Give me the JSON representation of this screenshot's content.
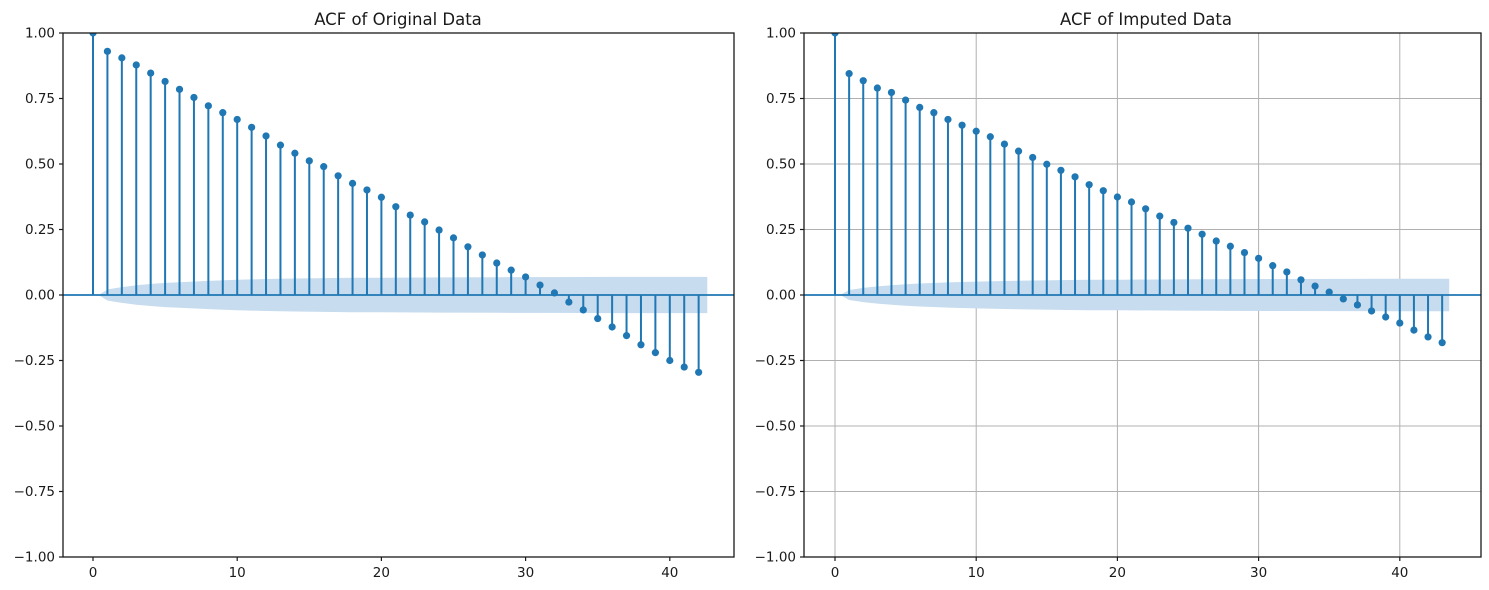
{
  "figure": {
    "background": "#ffffff"
  },
  "chart_data": [
    {
      "type": "stem",
      "title": "ACF of Original Data",
      "xlabel": "",
      "ylabel": "",
      "grid": false,
      "legend_position": "none",
      "xlim": [
        -2.1,
        44.4
      ],
      "ylim": [
        -1.0,
        1.0
      ],
      "xticks": [
        0,
        10,
        20,
        30,
        40
      ],
      "ytick_values": [
        1.0,
        0.75,
        0.5,
        0.25,
        0.0,
        -0.25,
        -0.5,
        -0.75,
        -1.0
      ],
      "ytick_labels": [
        "1.00",
        "0.75",
        "0.50",
        "0.25",
        "0.00",
        "−0.25",
        "−0.50",
        "−0.75",
        "−1.00"
      ],
      "x": [
        0,
        1,
        2,
        3,
        4,
        5,
        6,
        7,
        8,
        9,
        10,
        11,
        12,
        13,
        14,
        15,
        16,
        17,
        18,
        19,
        20,
        21,
        22,
        23,
        24,
        25,
        26,
        27,
        28,
        29,
        30,
        31,
        32,
        33,
        34,
        35,
        36,
        37,
        38,
        39,
        40,
        41,
        42
      ],
      "y": [
        1.0,
        0.93,
        0.905,
        0.878,
        0.847,
        0.815,
        0.785,
        0.754,
        0.722,
        0.696,
        0.67,
        0.64,
        0.607,
        0.572,
        0.541,
        0.512,
        0.49,
        0.455,
        0.426,
        0.401,
        0.373,
        0.337,
        0.305,
        0.279,
        0.248,
        0.218,
        0.184,
        0.153,
        0.122,
        0.095,
        0.069,
        0.038,
        0.008,
        -0.027,
        -0.057,
        -0.09,
        -0.122,
        -0.155,
        -0.19,
        -0.22,
        -0.25,
        -0.275,
        -0.295
      ],
      "ci_band": {
        "description": "confidence interval band around zero, half-width by lag",
        "points": [
          [
            0.5,
            0.004
          ],
          [
            1,
            0.021
          ],
          [
            1.5,
            0.026
          ],
          [
            2,
            0.03
          ],
          [
            3,
            0.037
          ],
          [
            4,
            0.042
          ],
          [
            5,
            0.046
          ],
          [
            6,
            0.049
          ],
          [
            8,
            0.054
          ],
          [
            10,
            0.058
          ],
          [
            12,
            0.061
          ],
          [
            14,
            0.063
          ],
          [
            16,
            0.0645
          ],
          [
            18,
            0.0655
          ],
          [
            20,
            0.066
          ],
          [
            24,
            0.0672
          ],
          [
            28,
            0.068
          ],
          [
            32,
            0.0685
          ],
          [
            36,
            0.069
          ],
          [
            40,
            0.069
          ],
          [
            42.6,
            0.069
          ]
        ]
      },
      "colors": {
        "stem": "#1f77b4",
        "marker": "#1f77b4",
        "zero_line": "#1f77b4",
        "band": "#c7dcee",
        "grid": "#b0b0b0",
        "spine": "#1a1a1a",
        "text": "#1a1a1a"
      }
    },
    {
      "type": "stem",
      "title": "ACF of Imputed Data",
      "xlabel": "",
      "ylabel": "",
      "grid": true,
      "legend_position": "none",
      "xlim": [
        -2.2,
        45.8
      ],
      "ylim": [
        -1.0,
        1.0
      ],
      "xticks": [
        0,
        10,
        20,
        30,
        40
      ],
      "ytick_values": [
        1.0,
        0.75,
        0.5,
        0.25,
        0.0,
        -0.25,
        -0.5,
        -0.75,
        -1.0
      ],
      "ytick_labels": [
        "1.00",
        "0.75",
        "0.50",
        "0.25",
        "0.00",
        "−0.25",
        "−0.50",
        "−0.75",
        "−1.00"
      ],
      "x": [
        0,
        1,
        2,
        3,
        4,
        5,
        6,
        7,
        8,
        9,
        10,
        11,
        12,
        13,
        14,
        15,
        16,
        17,
        18,
        19,
        20,
        21,
        22,
        23,
        24,
        25,
        26,
        27,
        28,
        29,
        30,
        31,
        32,
        33,
        34,
        35,
        36,
        37,
        38,
        39,
        40,
        41,
        42,
        43
      ],
      "y": [
        1.0,
        0.845,
        0.818,
        0.79,
        0.773,
        0.744,
        0.716,
        0.696,
        0.67,
        0.648,
        0.625,
        0.604,
        0.576,
        0.549,
        0.525,
        0.499,
        0.476,
        0.451,
        0.421,
        0.398,
        0.374,
        0.355,
        0.329,
        0.301,
        0.277,
        0.255,
        0.232,
        0.206,
        0.186,
        0.162,
        0.14,
        0.112,
        0.088,
        0.058,
        0.034,
        0.011,
        -0.015,
        -0.038,
        -0.061,
        -0.084,
        -0.107,
        -0.134,
        -0.16,
        -0.182
      ],
      "ci_band": {
        "description": "confidence interval band around zero, half-width by lag",
        "points": [
          [
            0.5,
            0.004
          ],
          [
            1,
            0.019
          ],
          [
            1.5,
            0.023
          ],
          [
            2,
            0.027
          ],
          [
            3,
            0.033
          ],
          [
            4,
            0.037
          ],
          [
            5,
            0.041
          ],
          [
            6,
            0.044
          ],
          [
            8,
            0.048
          ],
          [
            10,
            0.051
          ],
          [
            12,
            0.0535
          ],
          [
            14,
            0.0555
          ],
          [
            16,
            0.057
          ],
          [
            18,
            0.058
          ],
          [
            20,
            0.0585
          ],
          [
            24,
            0.0595
          ],
          [
            28,
            0.0605
          ],
          [
            32,
            0.061
          ],
          [
            36,
            0.0615
          ],
          [
            40,
            0.062
          ],
          [
            43.5,
            0.062
          ]
        ]
      },
      "colors": {
        "stem": "#1f77b4",
        "marker": "#1f77b4",
        "zero_line": "#1f77b4",
        "band": "#c7dcee",
        "grid": "#b0b0b0",
        "spine": "#1a1a1a",
        "text": "#1a1a1a"
      }
    }
  ]
}
